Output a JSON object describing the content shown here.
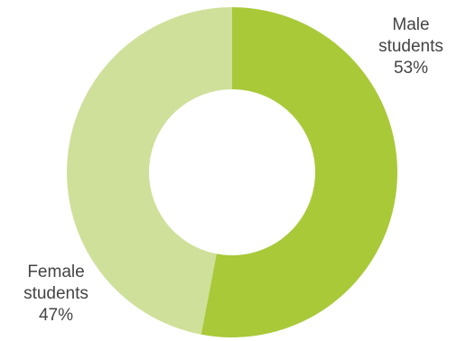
{
  "chart_data": {
    "type": "pie",
    "donut": true,
    "slices": [
      {
        "label": "Male students",
        "label_lines": [
          "Male",
          "students"
        ],
        "value": 53,
        "value_label": "53%",
        "color": "#a9c939"
      },
      {
        "label": "Female students",
        "label_lines": [
          "Female",
          "students"
        ],
        "value": 47,
        "value_label": "47%",
        "color": "#cfe09a"
      }
    ],
    "start_angle_deg": 0,
    "direction": "clockwise",
    "legend": "none",
    "title": ""
  }
}
